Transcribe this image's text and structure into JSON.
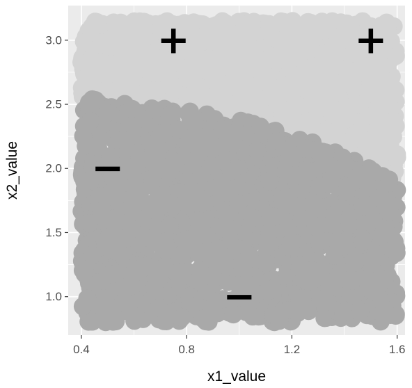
{
  "chart_data": {
    "type": "scatter",
    "title": "",
    "xlabel": "x1_value",
    "ylabel": "x2_value",
    "xlim": [
      0.35,
      1.63
    ],
    "ylim": [
      0.7,
      3.27
    ],
    "x_ticks": [
      0.4,
      0.8,
      1.2,
      1.6
    ],
    "x_tick_labels": [
      "0.4",
      "0.8",
      "1.2",
      "1.6"
    ],
    "y_ticks": [
      1.0,
      1.5,
      2.0,
      2.5,
      3.0
    ],
    "y_tick_labels": [
      "1.0",
      "1.5",
      "2.0",
      "2.5",
      "3.0"
    ],
    "grid": true,
    "panel_background": "#ebebeb",
    "gridline_color": "#ffffff",
    "series": [
      {
        "region": "positive",
        "color": "#d3d3d3",
        "x_range": [
          0.4,
          1.6
        ],
        "y_range": [
          0.8,
          3.15
        ],
        "point_count": 1500
      },
      {
        "region": "negative",
        "color": "#a9a9a9",
        "x_range": [
          0.4,
          1.6
        ],
        "y_range": [
          0.8,
          3.15
        ],
        "point_count": 1500
      }
    ],
    "boundary": {
      "description_points_x": [
        0.4,
        0.6,
        0.8,
        1.0,
        1.2,
        1.4,
        1.6
      ],
      "description_points_y": [
        2.55,
        2.5,
        2.45,
        2.38,
        2.27,
        2.1,
        1.9
      ]
    },
    "annotations": [
      {
        "text": "+",
        "x": 0.75,
        "y": 3.0
      },
      {
        "text": "+",
        "x": 1.5,
        "y": 3.0
      },
      {
        "text": "−",
        "x": 0.5,
        "y": 2.0
      },
      {
        "text": "−",
        "x": 1.0,
        "y": 1.0
      }
    ]
  }
}
